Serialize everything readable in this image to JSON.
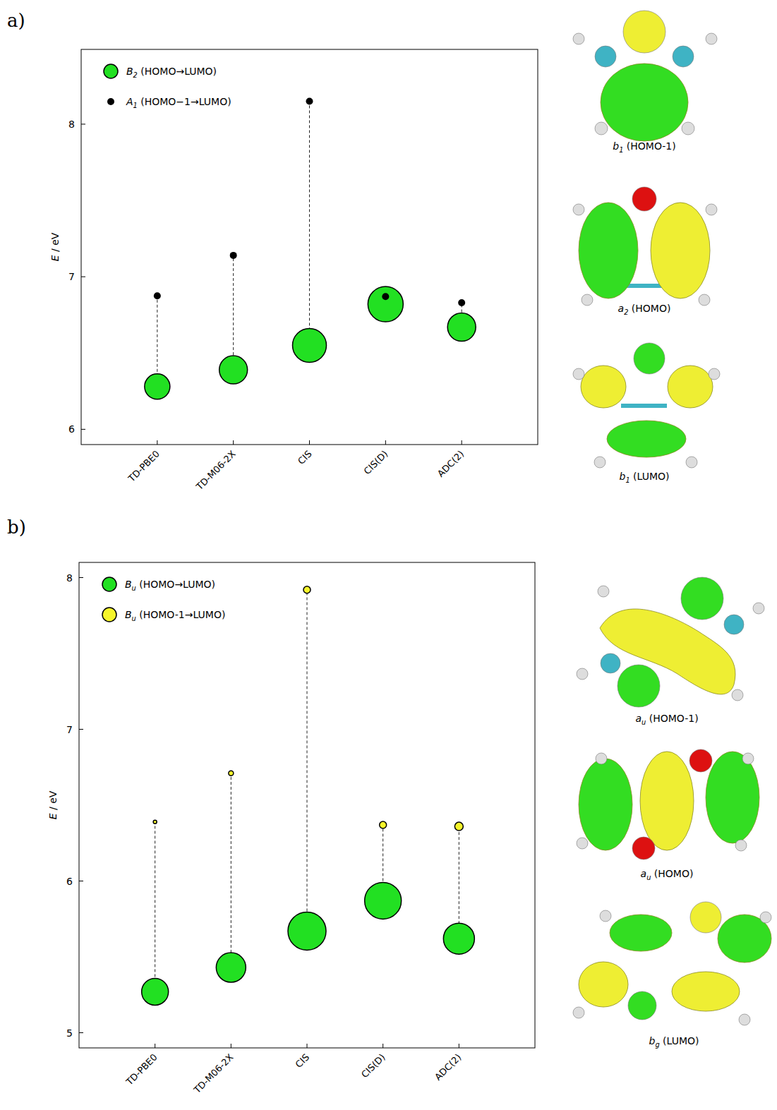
{
  "chart_data": [
    {
      "type": "scatter",
      "label": "a)",
      "y_label": "E / eV",
      "categories": [
        "TD-PBE0",
        "TD-M06-2X",
        "CIS",
        "CIS(D)",
        "ADC(2)"
      ],
      "ylim": [
        5.9,
        8.49
      ],
      "yticks": [
        6,
        7,
        8
      ],
      "grid": false,
      "legend": "upper left",
      "series": [
        {
          "name": "B2 (HOMO→LUMO)",
          "color": "#22e022",
          "marker": "circle",
          "values": [
            6.28,
            6.39,
            6.55,
            6.82,
            6.67
          ],
          "sizes": [
            18,
            20,
            24,
            25,
            20
          ]
        },
        {
          "name": "A1 (HOMO−1→LUMO)",
          "color": "#000000",
          "marker": "circle",
          "values": [
            6.875,
            7.14,
            8.15,
            6.87,
            6.83
          ],
          "sizes": [
            5,
            5,
            5,
            5,
            5
          ]
        }
      ],
      "annotations": [
        "b1 (HOMO-1)",
        "a2 (HOMO)",
        "b1 (LUMO)"
      ]
    },
    {
      "type": "scatter",
      "label": "b)",
      "y_label": "E / eV",
      "categories": [
        "TD-PBE0",
        "TD-M06-2X",
        "CIS",
        "CIS(D)",
        "ADC(2)"
      ],
      "ylim": [
        4.9,
        8.1
      ],
      "yticks": [
        5,
        6,
        7,
        8
      ],
      "grid": false,
      "legend": "upper left",
      "series": [
        {
          "name": "Bu (HOMO→LUMO)",
          "color": "#22e022",
          "marker": "circle",
          "values": [
            5.27,
            5.43,
            5.67,
            5.87,
            5.62
          ],
          "sizes": [
            19,
            21,
            27,
            26,
            22
          ]
        },
        {
          "name": "Bu (HOMO-1→LUMO)",
          "color": "#f5f52a",
          "marker": "circle",
          "values": [
            6.39,
            6.71,
            7.92,
            6.37,
            6.36
          ],
          "sizes": [
            2.5,
            3.5,
            5,
            5,
            6
          ]
        }
      ],
      "annotations": [
        "au (HOMO-1)",
        "au (HOMO)",
        "bg (LUMO)"
      ]
    }
  ]
}
